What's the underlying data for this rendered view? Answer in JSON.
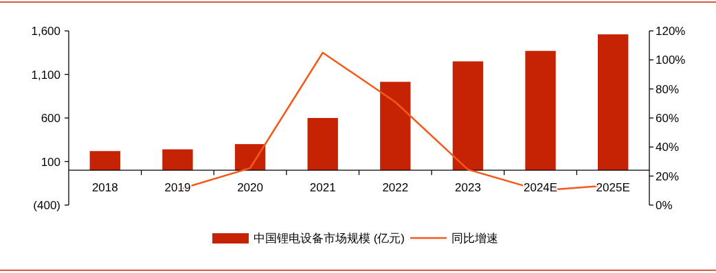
{
  "chart_data": {
    "type": "bar",
    "categories": [
      "2018",
      "2019",
      "2020",
      "2021",
      "2022",
      "2023",
      "2024E",
      "2025E"
    ],
    "series": [
      {
        "name": "中国锂电设备市场规模 (亿元)",
        "color": "#c62304",
        "values": [
          220,
          240,
          300,
          600,
          1015,
          1250,
          1370,
          1560
        ]
      },
      {
        "name": "同比增速",
        "type": "line",
        "axis": "y2",
        "color": "#f4591a",
        "values": [
          null,
          10.5,
          25.5,
          105,
          71,
          24.5,
          10,
          13.8
        ]
      }
    ],
    "ylim": [
      -400,
      1600
    ],
    "yticks": [
      {
        "value": -400,
        "label": "(400)"
      },
      100,
      {
        "value": 600,
        "label": "600"
      },
      {
        "value": 1100,
        "label": "1,100"
      },
      {
        "value": 1600,
        "label": "1,600"
      }
    ],
    "y2lim": [
      0,
      120
    ],
    "y2ticks": [
      {
        "value": 0,
        "label": "0%"
      },
      {
        "value": 20,
        "label": "20%"
      },
      {
        "value": 40,
        "label": "40%"
      },
      {
        "value": 60,
        "label": "60%"
      },
      {
        "value": 80,
        "label": "80%"
      },
      {
        "value": 100,
        "label": "100%"
      },
      {
        "value": 120,
        "label": "120%"
      }
    ],
    "grid": false,
    "legend": "bottom",
    "marker": "none",
    "line_style": "solid"
  }
}
